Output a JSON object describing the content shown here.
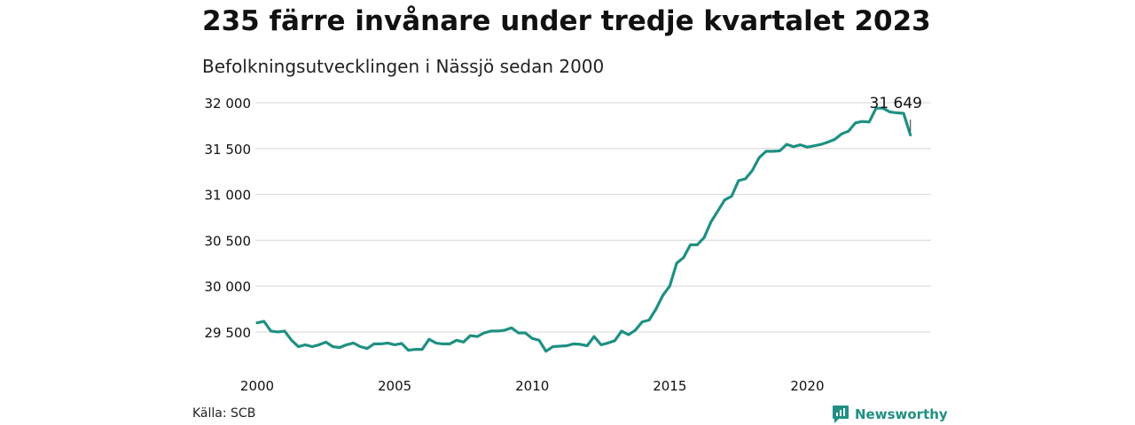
{
  "header": {
    "title": "235 färre invånare under tredje kvartalet 2023",
    "subtitle": "Befolkningsutvecklingen i Nässjö sedan 2000"
  },
  "footer": {
    "source": "Källa: SCB",
    "brand": "Newsworthy",
    "brand_icon": "newsworthy-logo-icon"
  },
  "colors": {
    "line": "#1f9083",
    "grid": "#dddddd",
    "brand": "#1f9083"
  },
  "chart_data": {
    "type": "line",
    "title": "235 färre invånare under tredje kvartalet 2023",
    "subtitle": "Befolkningsutvecklingen i Nässjö sedan 2000",
    "xlabel": "",
    "ylabel": "",
    "xlim": [
      2000,
      2024.5
    ],
    "ylim": [
      29200,
      32000
    ],
    "grid": true,
    "x_ticks": [
      {
        "value": 2000,
        "label": "2000"
      },
      {
        "value": 2005,
        "label": "2005"
      },
      {
        "value": 2010,
        "label": "2010"
      },
      {
        "value": 2015,
        "label": "2015"
      },
      {
        "value": 2020,
        "label": "2020"
      }
    ],
    "y_ticks": [
      {
        "value": 29500,
        "label": "29 500"
      },
      {
        "value": 30000,
        "label": "30 000"
      },
      {
        "value": 30500,
        "label": "30 500"
      },
      {
        "value": 31000,
        "label": "31 000"
      },
      {
        "value": 31500,
        "label": "31 500"
      },
      {
        "value": 32000,
        "label": "32 000"
      }
    ],
    "annotation": {
      "x": 2023.75,
      "y": 31649,
      "label": "31 649"
    },
    "series": [
      {
        "color": "#1f9083",
        "x": [
          2000.0,
          2000.25,
          2000.5,
          2000.75,
          2001.0,
          2001.25,
          2001.5,
          2001.75,
          2002.0,
          2002.25,
          2002.5,
          2002.75,
          2003.0,
          2003.25,
          2003.5,
          2003.75,
          2004.0,
          2004.25,
          2004.5,
          2004.75,
          2005.0,
          2005.25,
          2005.5,
          2005.75,
          2006.0,
          2006.25,
          2006.5,
          2006.75,
          2007.0,
          2007.25,
          2007.5,
          2007.75,
          2008.0,
          2008.25,
          2008.5,
          2008.75,
          2009.0,
          2009.25,
          2009.5,
          2009.75,
          2010.0,
          2010.25,
          2010.5,
          2010.75,
          2011.0,
          2011.25,
          2011.5,
          2011.75,
          2012.0,
          2012.25,
          2012.5,
          2012.75,
          2013.0,
          2013.25,
          2013.5,
          2013.75,
          2014.0,
          2014.25,
          2014.5,
          2014.75,
          2015.0,
          2015.25,
          2015.5,
          2015.75,
          2016.0,
          2016.25,
          2016.5,
          2016.75,
          2017.0,
          2017.25,
          2017.5,
          2017.75,
          2018.0,
          2018.25,
          2018.5,
          2018.75,
          2019.0,
          2019.25,
          2019.5,
          2019.75,
          2020.0,
          2020.25,
          2020.5,
          2020.75,
          2021.0,
          2021.25,
          2021.5,
          2021.75,
          2022.0,
          2022.25,
          2022.5,
          2022.75,
          2023.0,
          2023.25,
          2023.5,
          2023.75
        ],
        "values": [
          29600,
          29615,
          29510,
          29500,
          29510,
          29410,
          29340,
          29360,
          29340,
          29360,
          29390,
          29340,
          29330,
          29360,
          29380,
          29340,
          29320,
          29370,
          29370,
          29380,
          29360,
          29375,
          29300,
          29310,
          29310,
          29420,
          29380,
          29370,
          29370,
          29410,
          29390,
          29460,
          29450,
          29490,
          29510,
          29510,
          29520,
          29545,
          29490,
          29490,
          29430,
          29410,
          29290,
          29340,
          29345,
          29350,
          29370,
          29365,
          29350,
          29450,
          29360,
          29380,
          29405,
          29510,
          29470,
          29520,
          29610,
          29630,
          29750,
          29900,
          30000,
          30250,
          30310,
          30450,
          30450,
          30530,
          30700,
          30820,
          30940,
          30980,
          31150,
          31170,
          31260,
          31400,
          31470,
          31470,
          31475,
          31545,
          31520,
          31540,
          31515,
          31530,
          31545,
          31570,
          31600,
          31660,
          31690,
          31780,
          31795,
          31790,
          31940,
          31940,
          31900,
          31890,
          31884,
          31649
        ]
      }
    ]
  }
}
